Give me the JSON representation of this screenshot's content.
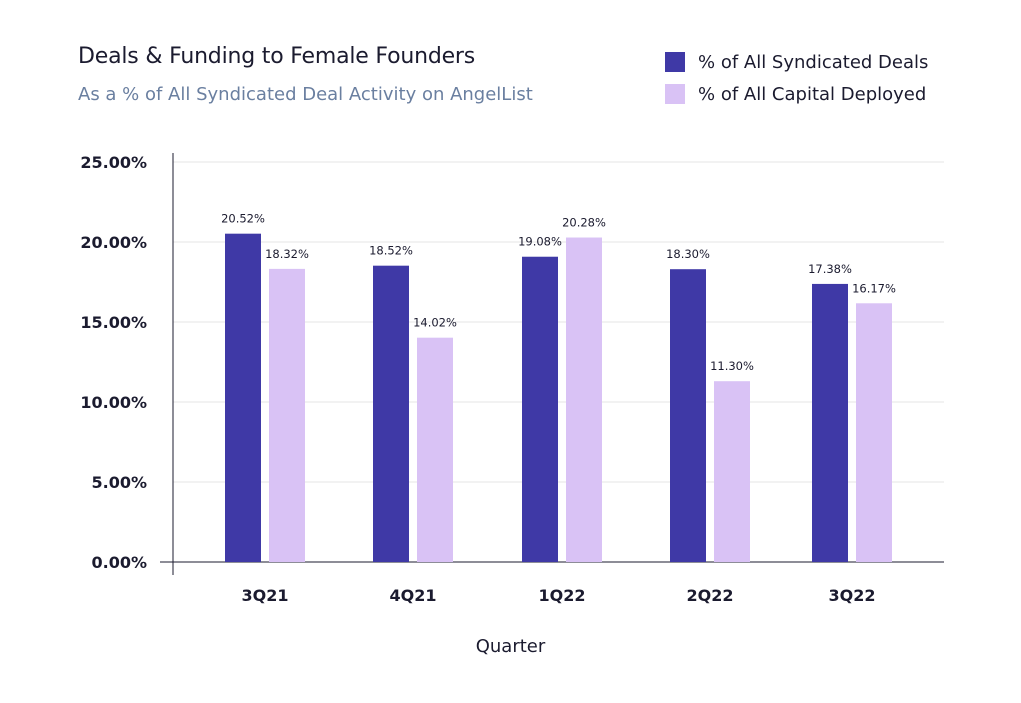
{
  "header": {
    "title": "Deals & Funding to Female Founders",
    "subtitle": "As a % of All Syndicated Deal Activity on AngelList"
  },
  "legend": [
    {
      "label": "% of All Syndicated Deals",
      "color": "#3f39a6"
    },
    {
      "label": "% of All Capital Deployed",
      "color": "#d9c2f5"
    }
  ],
  "colors": {
    "gridline": "#e6e6e6",
    "axis": "#1b1b2f",
    "text": "#1b1b2f"
  },
  "chart_data": {
    "type": "bar",
    "title": "Deals & Funding to Female Founders",
    "subtitle": "As a % of All Syndicated Deal Activity on AngelList",
    "xlabel": "Quarter",
    "ylabel": "",
    "ylim": [
      0,
      25
    ],
    "yticks": [
      0,
      5,
      10,
      15,
      20,
      25
    ],
    "ytick_labels": [
      "0.00%",
      "5.00%",
      "10.00%",
      "15.00%",
      "20.00%",
      "25.00%"
    ],
    "categories": [
      "3Q21",
      "4Q21",
      "1Q22",
      "2Q22",
      "3Q22"
    ],
    "series": [
      {
        "name": "% of All Syndicated Deals",
        "values": [
          20.52,
          18.52,
          19.08,
          18.3,
          17.38
        ],
        "labels": [
          "20.52%",
          "18.52%",
          "19.08%",
          "18.30%",
          "17.38%"
        ]
      },
      {
        "name": "% of All Capital Deployed",
        "values": [
          18.32,
          14.02,
          20.28,
          11.3,
          16.17
        ],
        "labels": [
          "18.32%",
          "14.02%",
          "20.28%",
          "11.30%",
          "16.17%"
        ]
      }
    ],
    "grid": true,
    "legend_position": "top-right"
  }
}
